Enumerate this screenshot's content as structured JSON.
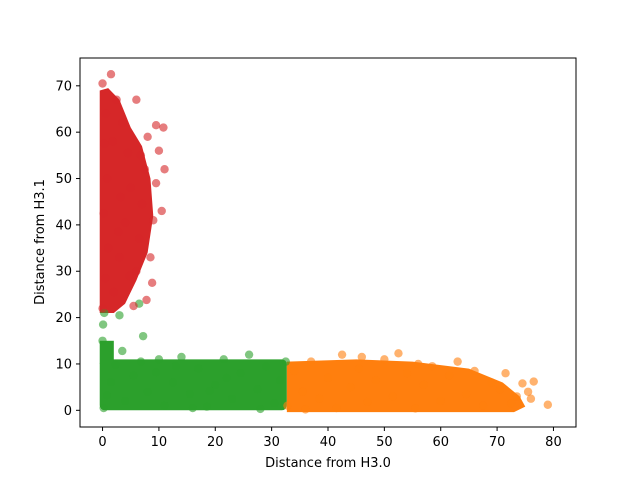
{
  "chart_data": {
    "type": "scatter",
    "title": "",
    "xlabel": "Distance from H3.0",
    "ylabel": "Distance from H3.1",
    "xlim": [
      -4,
      84
    ],
    "ylim": [
      -3.6,
      76
    ],
    "xticks": [
      0,
      10,
      20,
      30,
      40,
      50,
      60,
      70,
      80
    ],
    "yticks": [
      0,
      10,
      20,
      30,
      40,
      50,
      60,
      70
    ],
    "xtick_labels": [
      "0",
      "10",
      "20",
      "30",
      "40",
      "50",
      "60",
      "70",
      "80"
    ],
    "ytick_labels": [
      "0",
      "10",
      "20",
      "30",
      "40",
      "50",
      "60",
      "70"
    ],
    "grid": false,
    "marker_alpha": 0.6,
    "series": [
      {
        "color": "#2ca02c",
        "points": [
          [
            0.2,
            0.5
          ],
          [
            0.8,
            3.2
          ],
          [
            1.5,
            6.1
          ],
          [
            2.3,
            9.8
          ],
          [
            0.0,
            15.0
          ],
          [
            0.1,
            18.5
          ],
          [
            0.3,
            21.0
          ],
          [
            3.5,
            12.8
          ],
          [
            4.0,
            2.0
          ],
          [
            5.5,
            7.5
          ],
          [
            6.8,
            10.5
          ],
          [
            7.2,
            16.0
          ],
          [
            6.5,
            23.0
          ],
          [
            3.0,
            20.5
          ],
          [
            8.0,
            4.0
          ],
          [
            9.5,
            8.2
          ],
          [
            11.0,
            1.0
          ],
          [
            12.5,
            6.0
          ],
          [
            14.0,
            11.5
          ],
          [
            15.5,
            3.5
          ],
          [
            17.0,
            9.0
          ],
          [
            18.5,
            0.8
          ],
          [
            20.0,
            5.5
          ],
          [
            21.5,
            11.0
          ],
          [
            23.0,
            2.5
          ],
          [
            24.5,
            8.0
          ],
          [
            26.0,
            12.0
          ],
          [
            27.5,
            4.5
          ],
          [
            29.0,
            9.5
          ],
          [
            30.5,
            1.5
          ],
          [
            31.5,
            6.5
          ],
          [
            32.5,
            10.5
          ],
          [
            10.0,
            11.0
          ],
          [
            16.0,
            0.5
          ],
          [
            22.0,
            7.0
          ],
          [
            28.0,
            0.3
          ],
          [
            13.0,
            9.5
          ],
          [
            19.0,
            4.2
          ]
        ]
      },
      {
        "color": "#ff7f0e",
        "points": [
          [
            32.8,
            1.0
          ],
          [
            34.0,
            8.5
          ],
          [
            35.5,
            4.0
          ],
          [
            37.0,
            10.5
          ],
          [
            38.5,
            2.5
          ],
          [
            40.0,
            7.0
          ],
          [
            41.5,
            0.5
          ],
          [
            42.5,
            12.0
          ],
          [
            44.0,
            5.0
          ],
          [
            45.5,
            9.0
          ],
          [
            47.0,
            1.8
          ],
          [
            48.5,
            6.5
          ],
          [
            50.0,
            11.0
          ],
          [
            51.5,
            3.0
          ],
          [
            52.5,
            12.3
          ],
          [
            54.0,
            8.0
          ],
          [
            55.5,
            0.4
          ],
          [
            57.0,
            5.5
          ],
          [
            58.5,
            9.5
          ],
          [
            60.0,
            2.0
          ],
          [
            61.5,
            7.5
          ],
          [
            63.0,
            10.5
          ],
          [
            64.5,
            3.5
          ],
          [
            66.0,
            8.5
          ],
          [
            67.5,
            1.0
          ],
          [
            69.0,
            6.0
          ],
          [
            70.5,
            4.5
          ],
          [
            71.5,
            8.0
          ],
          [
            72.5,
            1.5
          ],
          [
            73.5,
            3.0
          ],
          [
            74.5,
            5.8
          ],
          [
            75.5,
            4.0
          ],
          [
            76.5,
            6.2
          ],
          [
            76.0,
            2.5
          ],
          [
            79.0,
            1.2
          ],
          [
            36.0,
            0.2
          ],
          [
            46.0,
            11.5
          ],
          [
            56.0,
            10.0
          ]
        ]
      },
      {
        "color": "#d62728",
        "points": [
          [
            0.0,
            22.0
          ],
          [
            0.5,
            28.5
          ],
          [
            1.0,
            35.0
          ],
          [
            0.2,
            42.5
          ],
          [
            0.8,
            50.0
          ],
          [
            0.3,
            57.5
          ],
          [
            0.6,
            64.0
          ],
          [
            0.0,
            70.5
          ],
          [
            1.5,
            72.5
          ],
          [
            2.5,
            67.0
          ],
          [
            3.5,
            62.0
          ],
          [
            4.5,
            55.5
          ],
          [
            5.0,
            48.0
          ],
          [
            4.0,
            40.5
          ],
          [
            3.0,
            33.0
          ],
          [
            2.0,
            25.5
          ],
          [
            6.0,
            30.0
          ],
          [
            6.5,
            37.0
          ],
          [
            7.0,
            44.5
          ],
          [
            7.5,
            52.0
          ],
          [
            8.0,
            59.0
          ],
          [
            6.0,
            67.0
          ],
          [
            5.5,
            22.5
          ],
          [
            7.8,
            23.8
          ],
          [
            8.5,
            33.0
          ],
          [
            9.0,
            41.0
          ],
          [
            9.5,
            49.0
          ],
          [
            10.0,
            56.0
          ],
          [
            9.5,
            61.5
          ],
          [
            10.5,
            43.0
          ],
          [
            11.0,
            52.0
          ],
          [
            10.8,
            61.0
          ],
          [
            3.2,
            46.0
          ],
          [
            1.8,
            58.0
          ],
          [
            4.8,
            29.0
          ],
          [
            2.8,
            38.5
          ],
          [
            6.8,
            55.0
          ],
          [
            8.8,
            27.5
          ]
        ]
      }
    ]
  }
}
